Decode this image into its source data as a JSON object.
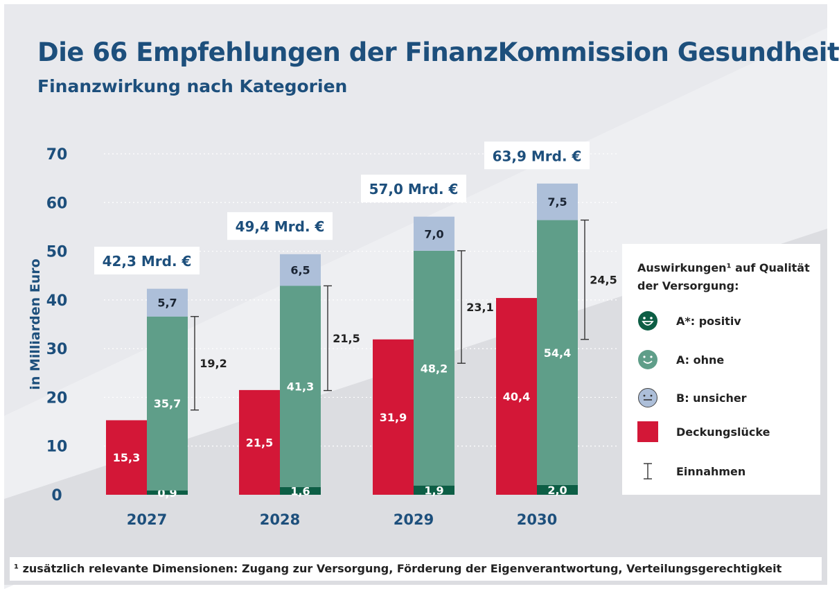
{
  "header": {
    "title": "Die 66 Empfehlungen der FinanzKommission Gesundheit",
    "subtitle": "Finanzwirkung nach Kategorien"
  },
  "legend": {
    "title_line1": "Auswirkungen¹ auf Qualität",
    "title_line2": "der Versorgung:",
    "items": [
      {
        "label": "A*: positiv",
        "icon": "smiley-big-grin-icon",
        "color": "#0d5e45"
      },
      {
        "label": "A: ohne",
        "icon": "smiley-smile-icon",
        "color": "#5f9e89"
      },
      {
        "label": "B: unsicher",
        "icon": "smiley-neutral-icon",
        "color": "#adbfd9"
      },
      {
        "label": "Deckungslücke",
        "icon": "square-icon",
        "color": "#d31737"
      },
      {
        "label": "Einnahmen",
        "icon": "bracket-icon",
        "color": "#333333"
      }
    ]
  },
  "footnote": "¹ zusätzlich relevante Dimensionen: Zugang zur Versorgung, Förderung der Eigenverantwortung, Verteilungsgerechtigkeit",
  "chart_data": {
    "type": "bar",
    "ylabel": "in Milliarden Euro",
    "ylim": [
      0,
      70
    ],
    "yticks": [
      "0",
      "10",
      "20",
      "30",
      "40",
      "50",
      "60",
      "70"
    ],
    "grid": true,
    "legend_placement": "right",
    "categories": [
      "2027",
      "2028",
      "2029",
      "2030"
    ],
    "totals": [
      "42,3 Mrd. €",
      "49,4 Mrd. €",
      "57,0 Mrd. €",
      "63,9 Mrd. €"
    ],
    "series": [
      {
        "name": "Deckungslücke",
        "color": "#d31737",
        "values": [
          15.3,
          21.5,
          31.9,
          40.4
        ],
        "labels": [
          "15,3",
          "21,5",
          "31,9",
          "40,4"
        ]
      },
      {
        "name": "A*: positiv",
        "color": "#0d5e45",
        "values": [
          0.9,
          1.6,
          1.9,
          2.0
        ],
        "labels": [
          "0,9",
          "1,6",
          "1,9",
          "2,0"
        ]
      },
      {
        "name": "A: ohne",
        "color": "#5f9e89",
        "values": [
          35.7,
          41.3,
          48.2,
          54.4
        ],
        "labels": [
          "35,7",
          "41,3",
          "48,2",
          "54,4"
        ]
      },
      {
        "name": "B: unsicher",
        "color": "#adbfd9",
        "values": [
          5.7,
          6.5,
          7.0,
          7.5
        ],
        "labels": [
          "5,7",
          "6,5",
          "7,0",
          "7,5"
        ]
      },
      {
        "name": "Einnahmen",
        "values": [
          19.2,
          21.5,
          23.1,
          24.5
        ],
        "labels": [
          "19,2",
          "21,5",
          "23,1",
          "24,5"
        ]
      }
    ]
  }
}
